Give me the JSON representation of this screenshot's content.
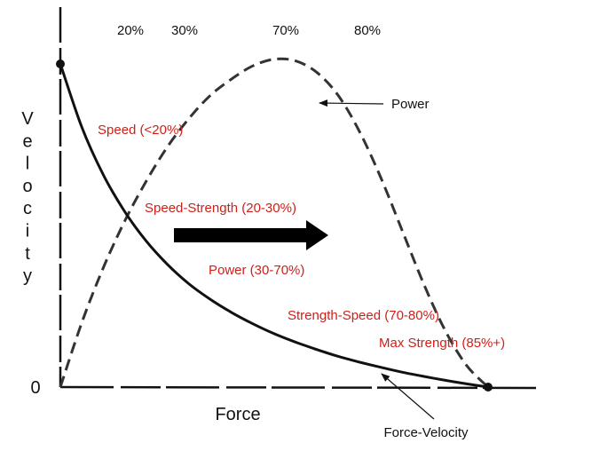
{
  "chart_data": {
    "type": "line",
    "title": "",
    "xlabel": "Force",
    "ylabel": "Velocity",
    "origin_label": "0",
    "top_percent_labels": [
      "20%",
      "30%",
      "70%",
      "80%"
    ],
    "series": [
      {
        "name": "Force-Velocity",
        "style": "solid",
        "x": [
          0,
          5,
          10,
          15,
          20,
          25,
          30,
          35,
          40,
          45,
          50,
          55,
          60,
          65,
          70,
          75,
          80,
          85,
          90,
          95,
          100
        ],
        "y": [
          100,
          80.5,
          65.8,
          54.4,
          45.3,
          38.0,
          32.0,
          27.2,
          23.1,
          19.6,
          16.5,
          13.9,
          11.6,
          9.5,
          7.7,
          6.1,
          4.6,
          3.3,
          2.1,
          1.0,
          0
        ]
      },
      {
        "name": "Power",
        "style": "dashed",
        "x": [
          0,
          5,
          10,
          15,
          20,
          25,
          30,
          35,
          40,
          45,
          50,
          55,
          60,
          65,
          70,
          75,
          80,
          85,
          90,
          95,
          100
        ],
        "y": [
          0,
          19.4,
          35.9,
          50.0,
          62.0,
          72.5,
          81.0,
          88.0,
          93.0,
          97.0,
          99.0,
          98.5,
          95.0,
          88.0,
          77.0,
          63.0,
          47.0,
          31.0,
          17.0,
          6.5,
          0
        ]
      }
    ],
    "legend": [
      {
        "name": "Power",
        "arrow": "points to dashed curve"
      },
      {
        "name": "Force-Velocity",
        "arrow": "points to solid curve"
      }
    ],
    "annotations": [
      {
        "text": "Speed (<20%)",
        "color": "#d0201a"
      },
      {
        "text": "Speed-Strength (20-30%)",
        "color": "#d0201a"
      },
      {
        "text": "Power (30-70%)",
        "color": "#d0201a"
      },
      {
        "text": "Strength-Speed (70-80%)",
        "color": "#d0201a"
      },
      {
        "text": "Max Strength (85%+)",
        "color": "#d0201a"
      }
    ],
    "colors": {
      "annotation": "#d0201a",
      "curve": "#111111",
      "axis": "#111111"
    },
    "xlim": [
      0,
      100
    ],
    "ylim": [
      0,
      100
    ]
  }
}
